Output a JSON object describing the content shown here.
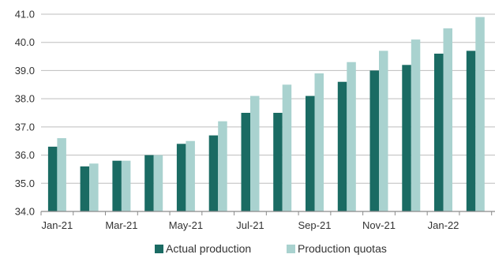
{
  "chart_data": {
    "type": "bar",
    "categories": [
      "Jan-21",
      "Feb-21",
      "Mar-21",
      "Apr-21",
      "May-21",
      "Jun-21",
      "Jul-21",
      "Aug-21",
      "Sep-21",
      "Oct-21",
      "Nov-21",
      "Dec-21",
      "Jan-22",
      "Feb-22"
    ],
    "x_tick_labels": [
      "Jan-21",
      "Mar-21",
      "May-21",
      "Jul-21",
      "Sep-21",
      "Nov-21",
      "Jan-22"
    ],
    "series": [
      {
        "name": "Actual production",
        "color": "#1a6b63",
        "values": [
          36.3,
          35.6,
          35.8,
          36.0,
          36.4,
          36.7,
          37.5,
          37.5,
          38.1,
          38.6,
          39.0,
          39.2,
          39.6,
          39.7
        ]
      },
      {
        "name": "Production quotas",
        "color": "#a9d2cf",
        "values": [
          36.6,
          35.7,
          35.8,
          36.0,
          36.5,
          37.2,
          38.1,
          38.5,
          38.9,
          39.3,
          39.7,
          40.1,
          40.5,
          40.9
        ]
      }
    ],
    "y_ticks": [
      "34.0",
      "35.0",
      "36.0",
      "37.0",
      "38.0",
      "39.0",
      "40.0",
      "41.0"
    ],
    "ylim": [
      34.0,
      41.0
    ],
    "grid": true,
    "legend_position": "bottom-center",
    "colors": {
      "grid": "#bdbdbd",
      "axis": "#8a8a8a",
      "text": "#333333"
    }
  }
}
